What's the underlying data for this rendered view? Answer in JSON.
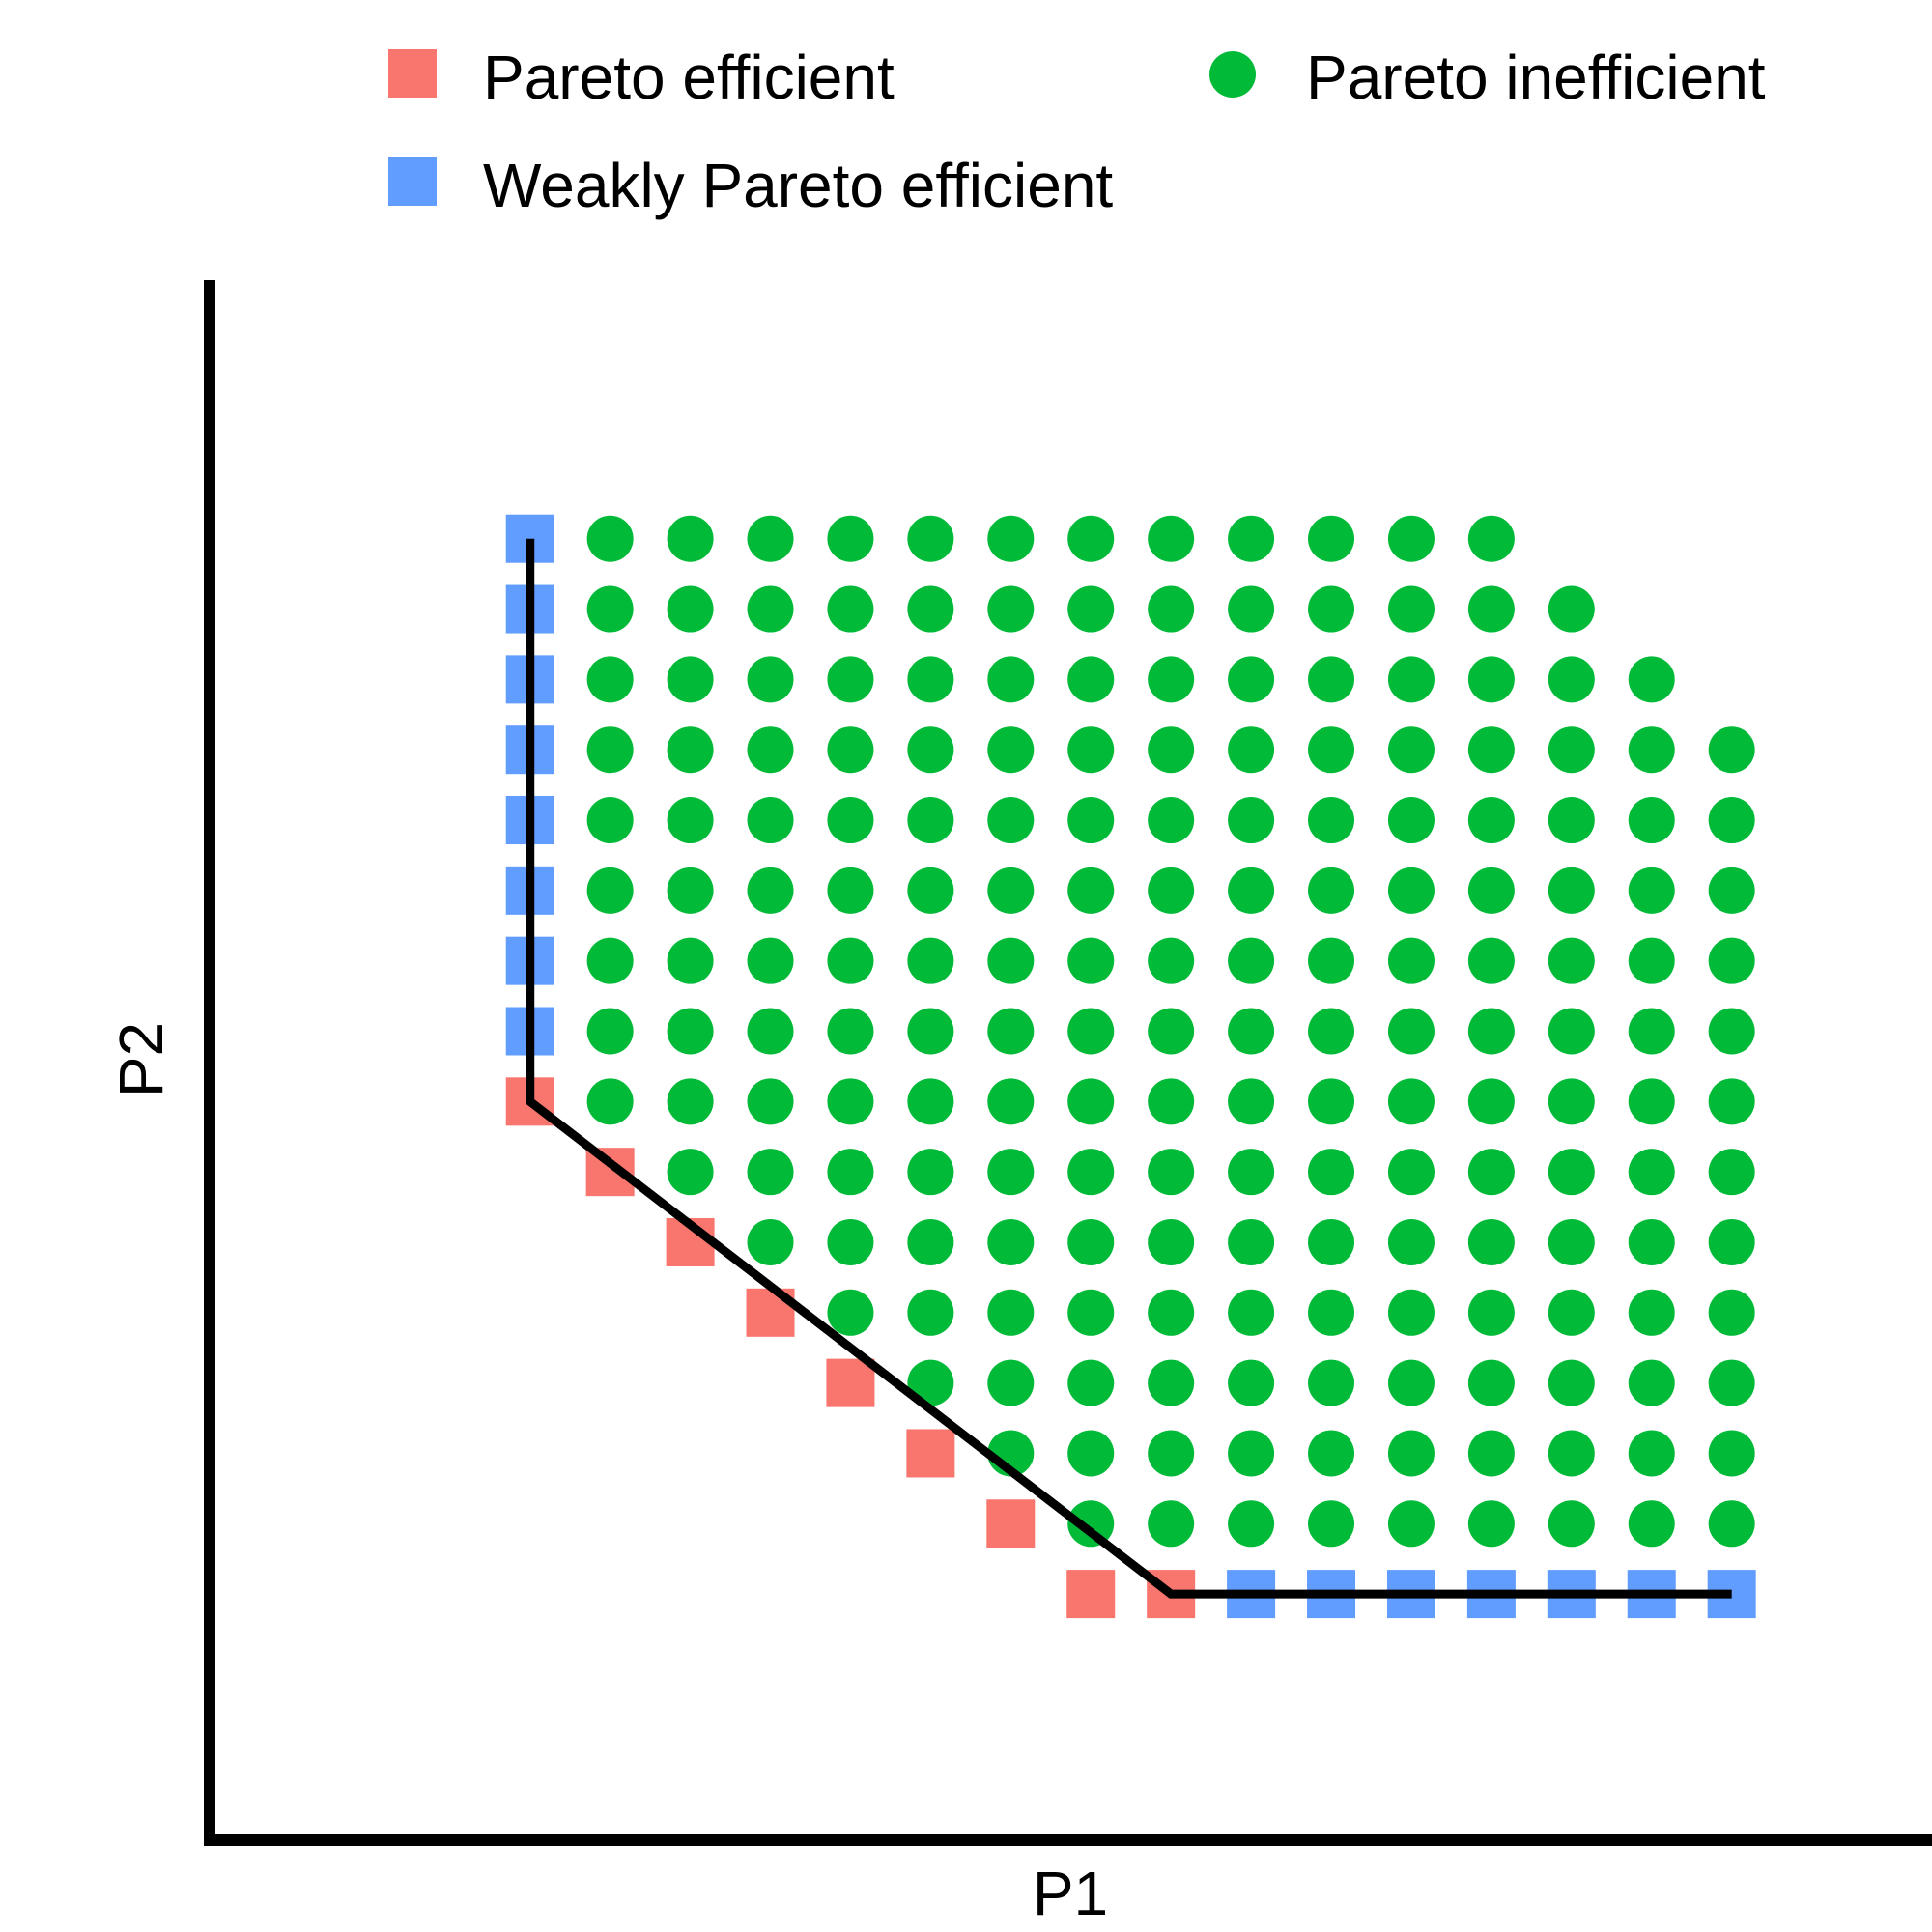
{
  "chart_data": {
    "type": "scatter",
    "title": "",
    "xlabel": "P1",
    "ylabel": "P2",
    "xlim": [
      -4,
      17.5
    ],
    "ylim": [
      -3.5,
      19.5
    ],
    "grid": false,
    "ticks": false,
    "legend": {
      "position": "top",
      "entries": [
        {
          "name": "Pareto efficient",
          "shape": "square",
          "color": "#F8766D"
        },
        {
          "name": "Pareto inefficient",
          "shape": "circle",
          "color": "#00BA38"
        },
        {
          "name": "Weakly Pareto efficient",
          "shape": "square",
          "color": "#619CFF"
        }
      ]
    },
    "grid_rule": {
      "x_range": [
        0,
        15
      ],
      "y_range": [
        0,
        15
      ],
      "lower_bound": "x + y >= 7",
      "upper_bound": "y <= 27 - x"
    },
    "series": [
      {
        "name": "Pareto efficient",
        "shape": "square",
        "color": "#F8766D",
        "points": [
          [
            0,
            7
          ],
          [
            1,
            6
          ],
          [
            2,
            5
          ],
          [
            3,
            4
          ],
          [
            4,
            3
          ],
          [
            5,
            2
          ],
          [
            6,
            1
          ],
          [
            7,
            0
          ],
          [
            8,
            0
          ]
        ]
      },
      {
        "name": "Weakly Pareto efficient",
        "shape": "square",
        "color": "#619CFF",
        "points": [
          [
            0,
            8
          ],
          [
            0,
            9
          ],
          [
            0,
            10
          ],
          [
            0,
            11
          ],
          [
            0,
            12
          ],
          [
            0,
            13
          ],
          [
            0,
            14
          ],
          [
            0,
            15
          ],
          [
            9,
            0
          ],
          [
            10,
            0
          ],
          [
            11,
            0
          ],
          [
            12,
            0
          ],
          [
            13,
            0
          ],
          [
            14,
            0
          ],
          [
            15,
            0
          ]
        ]
      },
      {
        "name": "Pareto inefficient",
        "shape": "circle",
        "color": "#00BA38",
        "rule": "all remaining grid points"
      }
    ],
    "frontier_line": {
      "color": "#000000",
      "points": [
        [
          0,
          15
        ],
        [
          0,
          7
        ],
        [
          8,
          0
        ],
        [
          15,
          0
        ]
      ]
    }
  }
}
